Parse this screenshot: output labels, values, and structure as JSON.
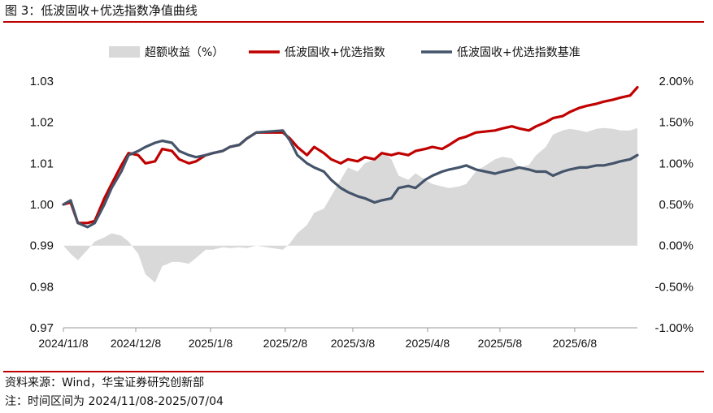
{
  "figure": {
    "title": "图 3：低波固收+优选指数净值曲线",
    "source": "资料来源：Wind，华宝证券研究创新部",
    "note": "注：时间区间为 2024/11/08-2025/07/04"
  },
  "colors": {
    "brand_rule": "#c00000",
    "series_index": "#c00000",
    "series_benchmark": "#44546a",
    "excess_area": "#d9d9d9",
    "axis": "#999999"
  },
  "chart_data": {
    "type": "line",
    "left_axis": {
      "ylim": [
        0.97,
        1.03
      ],
      "ticks": [
        1.03,
        1.02,
        1.01,
        1.0,
        0.99,
        0.98,
        0.97
      ],
      "tick_labels": [
        "1.03",
        "1.02",
        "1.01",
        "1.00",
        "0.99",
        "0.98",
        "0.97"
      ]
    },
    "right_axis": {
      "ylim": [
        -1.0,
        2.0
      ],
      "ticks": [
        2.0,
        1.5,
        1.0,
        0.5,
        0.0,
        -0.5,
        -1.0
      ],
      "tick_labels": [
        "2.00%",
        "1.50%",
        "1.00%",
        "0.50%",
        "0.00%",
        "-0.50%",
        "-1.00%"
      ]
    },
    "x_axis": {
      "range": [
        "2024-11-08",
        "2025-07-04"
      ],
      "ticks": [
        "2024-11-08",
        "2024-12-08",
        "2025-01-08",
        "2025-02-08",
        "2025-03-08",
        "2025-04-08",
        "2025-05-08",
        "2025-06-08"
      ],
      "tick_labels": [
        "2024/11/8",
        "2024/12/8",
        "2025/1/8",
        "2025/2/8",
        "2025/3/8",
        "2025/4/8",
        "2025/5/8",
        "2025/6/8"
      ]
    },
    "legend": {
      "position": "top",
      "entries": [
        "超额收益（%）",
        "低波固收+优选指数",
        "低波固收+优选指数基准"
      ]
    },
    "series": [
      {
        "name": "低波固收+优选指数",
        "axis": "left",
        "style": "line",
        "x": [
          "2024-11-08",
          "2024-11-11",
          "2024-11-14",
          "2024-11-18",
          "2024-11-21",
          "2024-11-25",
          "2024-11-28",
          "2024-12-02",
          "2024-12-05",
          "2024-12-09",
          "2024-12-12",
          "2024-12-16",
          "2024-12-19",
          "2024-12-23",
          "2024-12-26",
          "2024-12-30",
          "2025-01-02",
          "2025-01-06",
          "2025-01-09",
          "2025-01-13",
          "2025-01-16",
          "2025-01-20",
          "2025-01-23",
          "2025-01-27",
          "2025-02-07",
          "2025-02-10",
          "2025-02-13",
          "2025-02-17",
          "2025-02-20",
          "2025-02-24",
          "2025-02-27",
          "2025-03-03",
          "2025-03-06",
          "2025-03-10",
          "2025-03-13",
          "2025-03-17",
          "2025-03-20",
          "2025-03-24",
          "2025-03-27",
          "2025-03-31",
          "2025-04-03",
          "2025-04-07",
          "2025-04-10",
          "2025-04-14",
          "2025-04-17",
          "2025-04-21",
          "2025-04-24",
          "2025-04-28",
          "2025-05-06",
          "2025-05-09",
          "2025-05-13",
          "2025-05-16",
          "2025-05-20",
          "2025-05-23",
          "2025-05-27",
          "2025-05-30",
          "2025-06-03",
          "2025-06-06",
          "2025-06-10",
          "2025-06-13",
          "2025-06-17",
          "2025-06-20",
          "2025-06-24",
          "2025-06-27",
          "2025-07-01",
          "2025-07-04"
        ],
        "values": [
          1.0,
          1.0005,
          0.9955,
          0.9955,
          0.996,
          1.0015,
          1.005,
          1.0095,
          1.0125,
          1.012,
          1.01,
          1.0105,
          1.0135,
          1.013,
          1.011,
          1.01,
          1.0105,
          1.012,
          1.0125,
          1.013,
          1.014,
          1.0145,
          1.016,
          1.0175,
          1.0175,
          1.016,
          1.014,
          1.012,
          1.014,
          1.0125,
          1.011,
          1.01,
          1.011,
          1.0105,
          1.0115,
          1.011,
          1.0125,
          1.012,
          1.0125,
          1.012,
          1.013,
          1.0135,
          1.014,
          1.0135,
          1.0145,
          1.016,
          1.0165,
          1.0175,
          1.018,
          1.0185,
          1.019,
          1.0185,
          1.018,
          1.019,
          1.02,
          1.021,
          1.0215,
          1.0225,
          1.0235,
          1.024,
          1.0245,
          1.025,
          1.0255,
          1.026,
          1.0265,
          1.0285
        ]
      },
      {
        "name": "低波固收+优选指数基准",
        "axis": "left",
        "style": "line",
        "x": [
          "2024-11-08",
          "2024-11-11",
          "2024-11-14",
          "2024-11-18",
          "2024-11-21",
          "2024-11-25",
          "2024-11-28",
          "2024-12-02",
          "2024-12-05",
          "2024-12-09",
          "2024-12-12",
          "2024-12-16",
          "2024-12-19",
          "2024-12-23",
          "2024-12-26",
          "2024-12-30",
          "2025-01-02",
          "2025-01-06",
          "2025-01-09",
          "2025-01-13",
          "2025-01-16",
          "2025-01-20",
          "2025-01-23",
          "2025-01-27",
          "2025-02-07",
          "2025-02-10",
          "2025-02-13",
          "2025-02-17",
          "2025-02-20",
          "2025-02-24",
          "2025-02-27",
          "2025-03-03",
          "2025-03-06",
          "2025-03-10",
          "2025-03-13",
          "2025-03-17",
          "2025-03-20",
          "2025-03-24",
          "2025-03-27",
          "2025-03-31",
          "2025-04-03",
          "2025-04-07",
          "2025-04-10",
          "2025-04-14",
          "2025-04-17",
          "2025-04-21",
          "2025-04-24",
          "2025-04-28",
          "2025-05-06",
          "2025-05-09",
          "2025-05-13",
          "2025-05-16",
          "2025-05-20",
          "2025-05-23",
          "2025-05-27",
          "2025-05-30",
          "2025-06-03",
          "2025-06-06",
          "2025-06-10",
          "2025-06-13",
          "2025-06-17",
          "2025-06-20",
          "2025-06-24",
          "2025-06-27",
          "2025-07-01",
          "2025-07-04"
        ],
        "values": [
          1.0,
          1.001,
          0.9955,
          0.9945,
          0.9955,
          1.0,
          1.004,
          1.008,
          1.012,
          1.013,
          1.014,
          1.015,
          1.0155,
          1.015,
          1.013,
          1.012,
          1.0115,
          1.012,
          1.0125,
          1.013,
          1.014,
          1.0145,
          1.016,
          1.0175,
          1.018,
          1.0155,
          1.012,
          1.01,
          1.009,
          1.008,
          1.006,
          1.004,
          1.003,
          1.002,
          1.0015,
          1.0005,
          1.001,
          1.0015,
          1.004,
          1.0045,
          1.004,
          1.006,
          1.007,
          1.008,
          1.0085,
          1.009,
          1.0095,
          1.0085,
          1.0075,
          1.008,
          1.0085,
          1.009,
          1.0085,
          1.008,
          1.008,
          1.007,
          1.008,
          1.0085,
          1.009,
          1.009,
          1.0095,
          1.0095,
          1.01,
          1.0105,
          1.011,
          1.012
        ]
      },
      {
        "name": "超额收益（%）",
        "axis": "right",
        "style": "area",
        "x": [
          "2024-11-08",
          "2024-11-11",
          "2024-11-14",
          "2024-11-18",
          "2024-11-21",
          "2024-11-25",
          "2024-11-28",
          "2024-12-02",
          "2024-12-05",
          "2024-12-09",
          "2024-12-12",
          "2024-12-16",
          "2024-12-19",
          "2024-12-23",
          "2024-12-26",
          "2024-12-30",
          "2025-01-02",
          "2025-01-06",
          "2025-01-09",
          "2025-01-13",
          "2025-01-16",
          "2025-01-20",
          "2025-01-23",
          "2025-01-27",
          "2025-02-07",
          "2025-02-10",
          "2025-02-13",
          "2025-02-17",
          "2025-02-20",
          "2025-02-24",
          "2025-02-27",
          "2025-03-03",
          "2025-03-06",
          "2025-03-10",
          "2025-03-13",
          "2025-03-17",
          "2025-03-20",
          "2025-03-24",
          "2025-03-27",
          "2025-03-31",
          "2025-04-03",
          "2025-04-07",
          "2025-04-10",
          "2025-04-14",
          "2025-04-17",
          "2025-04-21",
          "2025-04-24",
          "2025-04-28",
          "2025-05-06",
          "2025-05-09",
          "2025-05-13",
          "2025-05-16",
          "2025-05-20",
          "2025-05-23",
          "2025-05-27",
          "2025-05-30",
          "2025-06-03",
          "2025-06-06",
          "2025-06-10",
          "2025-06-13",
          "2025-06-17",
          "2025-06-20",
          "2025-06-24",
          "2025-06-27",
          "2025-07-01",
          "2025-07-04"
        ],
        "values": [
          0.0,
          -0.1,
          -0.18,
          -0.05,
          0.05,
          0.1,
          0.15,
          0.12,
          0.05,
          -0.1,
          -0.35,
          -0.45,
          -0.25,
          -0.2,
          -0.2,
          -0.22,
          -0.15,
          -0.05,
          -0.05,
          -0.02,
          -0.03,
          -0.02,
          -0.03,
          0.0,
          -0.05,
          0.03,
          0.15,
          0.25,
          0.4,
          0.45,
          0.6,
          0.8,
          0.95,
          0.9,
          1.0,
          1.05,
          1.15,
          1.05,
          0.85,
          0.8,
          0.88,
          0.8,
          0.75,
          0.72,
          0.7,
          0.72,
          0.75,
          0.9,
          1.05,
          1.08,
          1.06,
          0.95,
          0.98,
          1.1,
          1.2,
          1.35,
          1.4,
          1.42,
          1.4,
          1.38,
          1.42,
          1.43,
          1.42,
          1.4,
          1.4,
          1.43
        ]
      }
    ]
  }
}
